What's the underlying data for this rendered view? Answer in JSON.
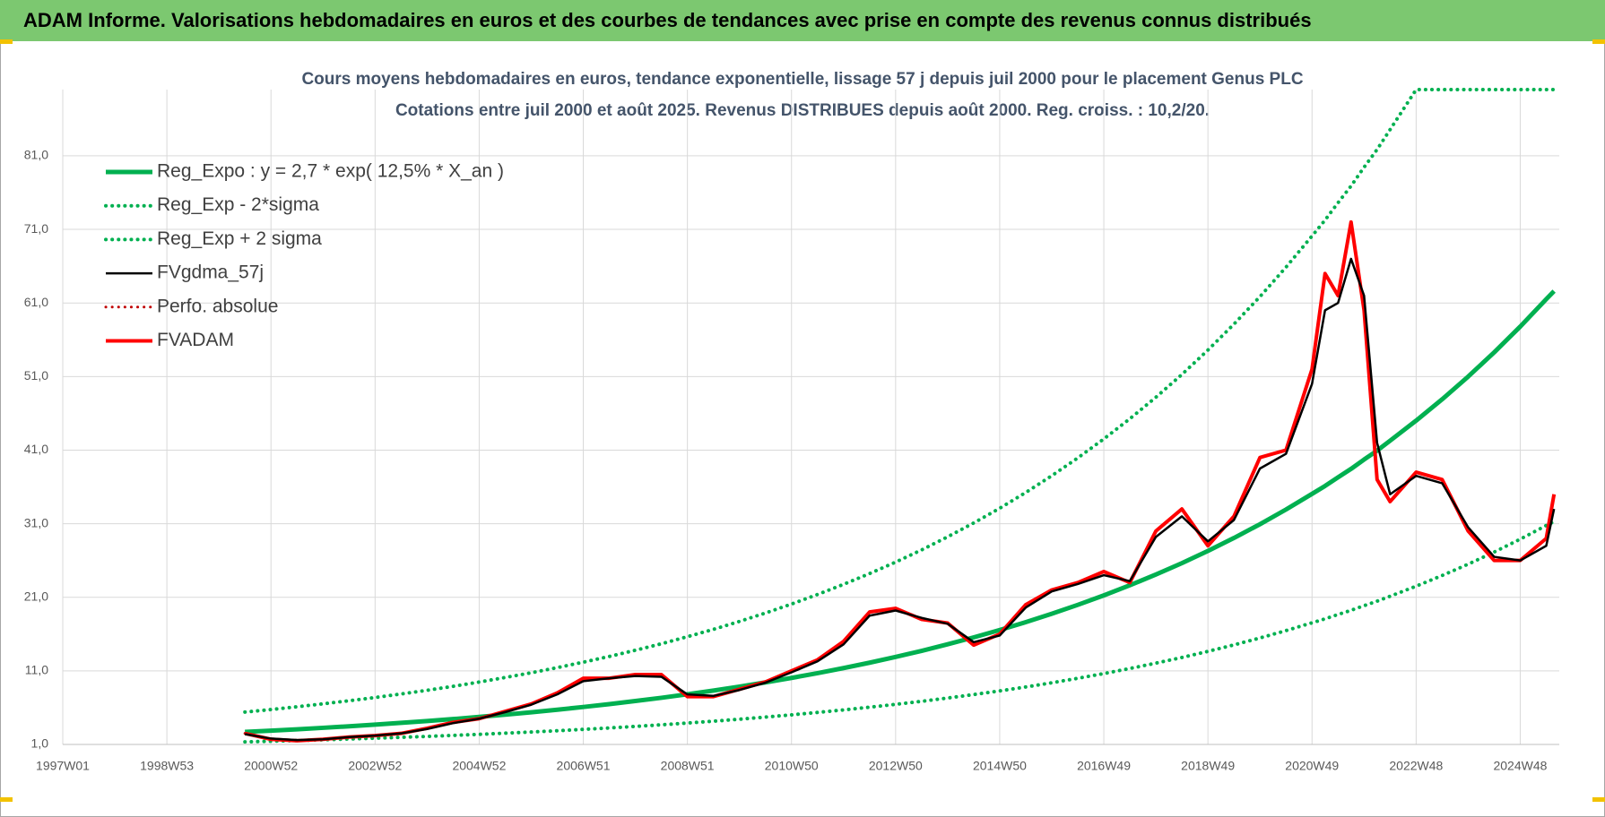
{
  "chart_data": {
    "type": "line",
    "title": "ADAM Informe. Valorisations hebdomadaires en euros et des courbes de tendances avec prise en compte des revenus connus distribués",
    "subtitle": [
      "Cours moyens hebdomadaires en euros, tendance exponentielle, lissage 57 j depuis juil 2000 pour le placement Genus PLC",
      "Cotations entre juil 2000 et août 2025. Revenus DISTRIBUES depuis août 2000. Reg. croiss. : 10,2/20."
    ],
    "x": [
      2000.5,
      2001,
      2001.5,
      2002,
      2002.5,
      2003,
      2003.5,
      2004,
      2004.5,
      2005,
      2005.5,
      2006,
      2006.5,
      2007,
      2007.5,
      2008,
      2008.5,
      2009,
      2009.5,
      2010,
      2010.5,
      2011,
      2011.5,
      2012,
      2012.5,
      2013,
      2013.5,
      2014,
      2014.5,
      2015,
      2015.5,
      2016,
      2016.5,
      2017,
      2017.5,
      2018,
      2018.5,
      2019,
      2019.5,
      2020,
      2020.5,
      2021,
      2021.25,
      2021.5,
      2021.75,
      2022,
      2022.25,
      2022.5,
      2023,
      2023.5,
      2024,
      2024.5,
      2025,
      2025.5,
      2025.65
    ],
    "xlim": [
      1997,
      2025.75
    ],
    "xticks": [
      {
        "value": 1997,
        "label": "1997W01"
      },
      {
        "value": 1999,
        "label": "1998W53"
      },
      {
        "value": 2001,
        "label": "2000W52"
      },
      {
        "value": 2003,
        "label": "2002W52"
      },
      {
        "value": 2005,
        "label": "2004W52"
      },
      {
        "value": 2007,
        "label": "2006W51"
      },
      {
        "value": 2009,
        "label": "2008W51"
      },
      {
        "value": 2011,
        "label": "2010W50"
      },
      {
        "value": 2013,
        "label": "2012W50"
      },
      {
        "value": 2015,
        "label": "2014W50"
      },
      {
        "value": 2017,
        "label": "2016W49"
      },
      {
        "value": 2019,
        "label": "2018W49"
      },
      {
        "value": 2021,
        "label": "2020W49"
      },
      {
        "value": 2023,
        "label": "2022W48"
      },
      {
        "value": 2025,
        "label": "2024W48"
      }
    ],
    "ylim": [
      1,
      90
    ],
    "yticks": [
      {
        "value": 1,
        "label": "1,0"
      },
      {
        "value": 11,
        "label": "11,0"
      },
      {
        "value": 21,
        "label": "21,0"
      },
      {
        "value": 31,
        "label": "31,0"
      },
      {
        "value": 41,
        "label": "41,0"
      },
      {
        "value": 51,
        "label": "51,0"
      },
      {
        "value": 61,
        "label": "61,0"
      },
      {
        "value": 71,
        "label": "71,0"
      },
      {
        "value": 81,
        "label": "81,0"
      }
    ],
    "grid": true,
    "legend": "upper left",
    "series": [
      {
        "name": "Reg_Expo : y = 2,7 * exp( 12,5% *  X_an )",
        "color": "#00b050",
        "line_style": "solid",
        "values": [
          2.7,
          2.87,
          3.06,
          3.26,
          3.47,
          3.69,
          3.93,
          4.18,
          4.45,
          4.74,
          5.05,
          5.37,
          5.72,
          6.09,
          6.48,
          6.9,
          7.34,
          7.82,
          8.32,
          8.86,
          9.43,
          10.04,
          10.69,
          11.38,
          12.11,
          12.89,
          13.72,
          14.61,
          15.55,
          16.55,
          17.62,
          18.76,
          19.97,
          21.26,
          22.63,
          24.09,
          25.64,
          27.3,
          29.06,
          30.93,
          32.93,
          35.05,
          36.13,
          37.31,
          38.45,
          39.72,
          40.93,
          42.28,
          45.01,
          47.91,
          51.0,
          54.29,
          57.79,
          61.52,
          62.6
        ]
      },
      {
        "name": "Reg_Exp - 2*sigma",
        "color": "#00b050",
        "line_style": "dotted",
        "values": [
          1.35,
          1.44,
          1.53,
          1.63,
          1.74,
          1.85,
          1.97,
          2.09,
          2.23,
          2.37,
          2.53,
          2.69,
          2.86,
          3.05,
          3.24,
          3.45,
          3.67,
          3.91,
          4.16,
          4.43,
          4.72,
          5.02,
          5.35,
          5.69,
          6.06,
          6.45,
          6.86,
          7.31,
          7.78,
          8.28,
          8.81,
          9.38,
          9.99,
          10.63,
          11.32,
          12.05,
          12.82,
          13.65,
          14.53,
          15.47,
          16.47,
          17.53,
          18.07,
          18.66,
          19.23,
          19.86,
          20.47,
          21.14,
          22.51,
          23.96,
          25.5,
          27.15,
          28.9,
          30.76,
          31.3
        ]
      },
      {
        "name": "Reg_Exp + 2 sigma",
        "color": "#00b050",
        "line_style": "dotted",
        "values": [
          5.4,
          5.74,
          6.12,
          6.52,
          6.94,
          7.38,
          7.86,
          8.36,
          8.9,
          9.48,
          10.1,
          10.74,
          11.44,
          12.18,
          12.96,
          13.8,
          14.68,
          15.64,
          16.64,
          17.72,
          18.86,
          20.08,
          21.38,
          22.76,
          24.22,
          25.78,
          27.44,
          29.22,
          31.1,
          33.1,
          35.24,
          37.52,
          39.94,
          42.52,
          45.26,
          48.18,
          51.28,
          54.6,
          58.12,
          61.86,
          65.86,
          70.1,
          72.26,
          74.62,
          76.9,
          79.44,
          81.86,
          84.56,
          90,
          90,
          90,
          90,
          90,
          90,
          90
        ]
      },
      {
        "name": "FVgdma_57j",
        "color": "#000000",
        "line_style": "solid",
        "values": [
          2.4,
          1.8,
          1.6,
          1.7,
          2.0,
          2.2,
          2.5,
          3.1,
          3.9,
          4.5,
          5.4,
          6.4,
          7.8,
          9.6,
          10.0,
          10.3,
          10.2,
          7.8,
          7.6,
          8.4,
          9.4,
          10.8,
          12.3,
          14.6,
          18.5,
          19.2,
          18.2,
          17.4,
          14.9,
          15.8,
          19.6,
          21.8,
          22.8,
          24.0,
          23.2,
          29.2,
          32.0,
          28.6,
          31.5,
          38.5,
          40.5,
          50.0,
          60.0,
          61.0,
          67.0,
          62.0,
          42.0,
          35.0,
          37.5,
          36.5,
          30.5,
          26.5,
          26.0,
          28.0,
          33.0
        ]
      },
      {
        "name": "Perfo. absolue",
        "color": "#c00000",
        "line_style": "dotted",
        "values": [
          2.5,
          1.7,
          1.5,
          1.7,
          2.0,
          2.2,
          2.5,
          3.2,
          4.0,
          4.5,
          5.5,
          6.5,
          8.0,
          10.0,
          10.0,
          10.5,
          10.5,
          7.5,
          7.5,
          8.5,
          9.5,
          11.0,
          12.5,
          15.0,
          19.0,
          19.5,
          18.0,
          17.5,
          14.5,
          16.0,
          20.0,
          22.0,
          23.0,
          24.5,
          23.0,
          30.0,
          33.0,
          28.0,
          32.0,
          40.0,
          41.0,
          52.0,
          65,
          62,
          72,
          60,
          37,
          34,
          38,
          37,
          30,
          26,
          26,
          29,
          35
        ]
      },
      {
        "name": "FVADAM",
        "color": "#ff0000",
        "line_style": "solid",
        "values": [
          2.5,
          1.7,
          1.5,
          1.7,
          2.0,
          2.2,
          2.5,
          3.2,
          4.0,
          4.5,
          5.5,
          6.5,
          8.0,
          10.0,
          10.0,
          10.5,
          10.5,
          7.5,
          7.5,
          8.5,
          9.5,
          11.0,
          12.5,
          15.0,
          19.0,
          19.5,
          18.0,
          17.5,
          14.5,
          16.0,
          20.0,
          22.0,
          23.0,
          24.5,
          23.0,
          30.0,
          33.0,
          28.0,
          32.0,
          40.0,
          41.0,
          52.0,
          65,
          62,
          72,
          60,
          37,
          34,
          38,
          37,
          30,
          26,
          26,
          29,
          35
        ]
      }
    ]
  }
}
